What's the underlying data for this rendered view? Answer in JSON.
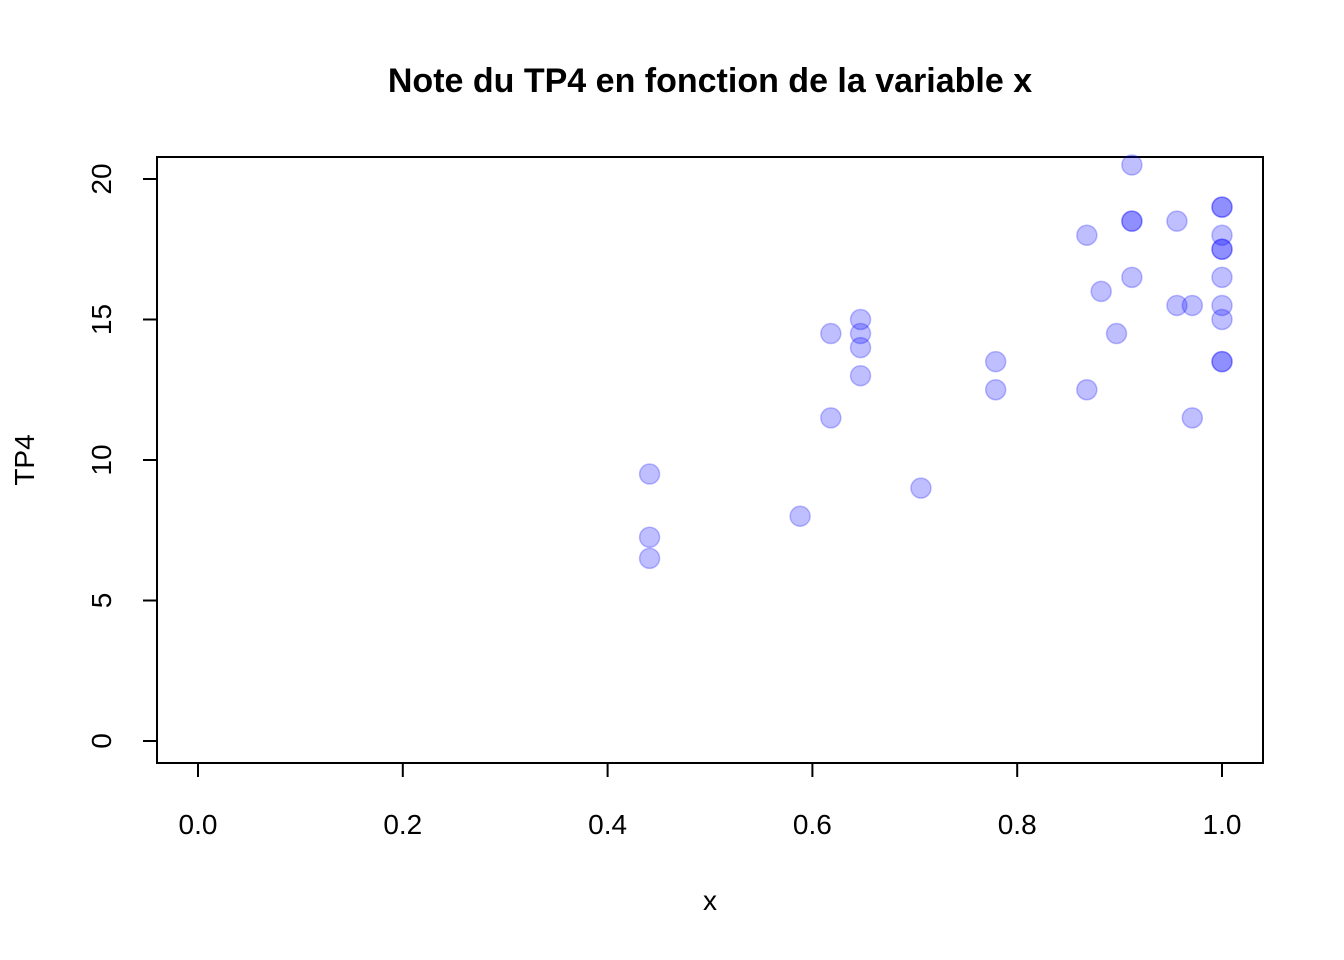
{
  "chart_data": {
    "type": "scatter",
    "title": "Note du TP4 en fonction de la variable x",
    "xlabel": "x",
    "ylabel": "TP4",
    "xlim": [
      0.0,
      1.0
    ],
    "ylim": [
      0,
      20
    ],
    "x_ticks": [
      "0.0",
      "0.2",
      "0.4",
      "0.6",
      "0.8",
      "1.0"
    ],
    "y_ticks": [
      "0",
      "5",
      "10",
      "15",
      "20"
    ],
    "grid": false,
    "legend": "none",
    "point_color": "#0000ff",
    "point_opacity": 0.25,
    "points": [
      {
        "x": 0.441,
        "y": 9.5
      },
      {
        "x": 0.441,
        "y": 7.25
      },
      {
        "x": 0.441,
        "y": 6.5
      },
      {
        "x": 0.588,
        "y": 8.0
      },
      {
        "x": 0.618,
        "y": 14.5
      },
      {
        "x": 0.618,
        "y": 11.5
      },
      {
        "x": 0.647,
        "y": 15.0
      },
      {
        "x": 0.647,
        "y": 14.5
      },
      {
        "x": 0.647,
        "y": 14.0
      },
      {
        "x": 0.647,
        "y": 13.0
      },
      {
        "x": 0.706,
        "y": 9.0
      },
      {
        "x": 0.779,
        "y": 13.5
      },
      {
        "x": 0.779,
        "y": 12.5
      },
      {
        "x": 0.868,
        "y": 18.0
      },
      {
        "x": 0.868,
        "y": 12.5
      },
      {
        "x": 0.882,
        "y": 16.0
      },
      {
        "x": 0.897,
        "y": 14.5
      },
      {
        "x": 0.912,
        "y": 20.5
      },
      {
        "x": 0.912,
        "y": 18.5
      },
      {
        "x": 0.912,
        "y": 18.5
      },
      {
        "x": 0.912,
        "y": 16.5
      },
      {
        "x": 0.956,
        "y": 18.5
      },
      {
        "x": 0.956,
        "y": 15.5
      },
      {
        "x": 0.971,
        "y": 15.5
      },
      {
        "x": 0.971,
        "y": 11.5
      },
      {
        "x": 1.0,
        "y": 19.0
      },
      {
        "x": 1.0,
        "y": 19.0
      },
      {
        "x": 1.0,
        "y": 18.0
      },
      {
        "x": 1.0,
        "y": 17.5
      },
      {
        "x": 1.0,
        "y": 17.5
      },
      {
        "x": 1.0,
        "y": 16.5
      },
      {
        "x": 1.0,
        "y": 15.5
      },
      {
        "x": 1.0,
        "y": 15.0
      },
      {
        "x": 1.0,
        "y": 13.5
      },
      {
        "x": 1.0,
        "y": 13.5
      }
    ]
  }
}
